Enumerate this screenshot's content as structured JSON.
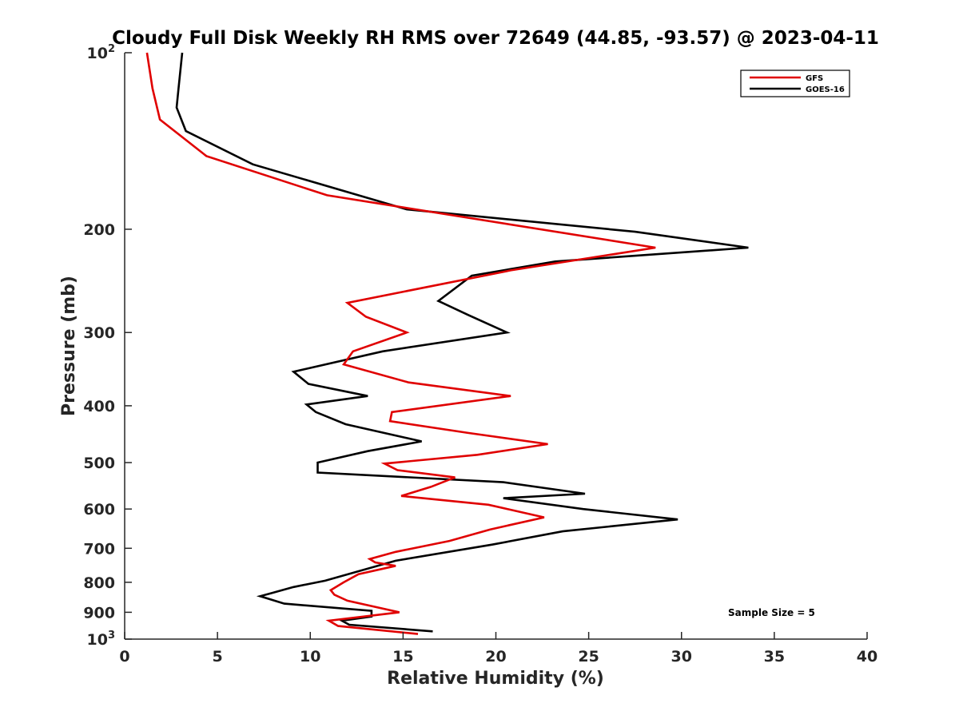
{
  "chart_data": {
    "type": "line",
    "title": "Cloudy Full Disk Weekly RH RMS over 72649 (44.85, -93.57) @ 2023-04-11",
    "xlabel": "Relative Humidity (%)",
    "ylabel": "Pressure (mb)",
    "xlim": [
      0,
      40
    ],
    "ylim": [
      100,
      1000
    ],
    "y_scale": "log",
    "y_reversed": true,
    "grid": false,
    "legend_position": "top-right",
    "x_ticks": [
      0,
      5,
      10,
      15,
      20,
      25,
      30,
      35,
      40
    ],
    "x_tick_labels": [
      "0",
      "5",
      "10",
      "15",
      "20",
      "25",
      "30",
      "35",
      "40"
    ],
    "y_ticks": [
      {
        "value": 100,
        "base": "10",
        "exp": "2"
      },
      {
        "value": 200,
        "label": "200"
      },
      {
        "value": 300,
        "label": "300"
      },
      {
        "value": 400,
        "label": "400"
      },
      {
        "value": 500,
        "label": "500"
      },
      {
        "value": 600,
        "label": "600"
      },
      {
        "value": 700,
        "label": "700"
      },
      {
        "value": 800,
        "label": "800"
      },
      {
        "value": 900,
        "label": "900"
      },
      {
        "value": 1000,
        "base": "10",
        "exp": "3"
      }
    ],
    "series": [
      {
        "name": "GFS",
        "color": "#e00000",
        "points": [
          [
            1.2,
            100
          ],
          [
            1.5,
            115
          ],
          [
            1.9,
            130
          ],
          [
            4.4,
            150
          ],
          [
            10.9,
            175
          ],
          [
            28.6,
            215
          ],
          [
            20.8,
            235
          ],
          [
            12.0,
            267
          ],
          [
            13.0,
            282
          ],
          [
            15.2,
            300
          ],
          [
            12.3,
            323
          ],
          [
            11.8,
            340
          ],
          [
            15.3,
            365
          ],
          [
            20.8,
            385
          ],
          [
            14.4,
            410
          ],
          [
            14.3,
            425
          ],
          [
            18.5,
            445
          ],
          [
            22.8,
            465
          ],
          [
            19.0,
            485
          ],
          [
            14.0,
            502
          ],
          [
            14.7,
            515
          ],
          [
            17.8,
            530
          ],
          [
            16.5,
            550
          ],
          [
            14.9,
            570
          ],
          [
            19.6,
            590
          ],
          [
            22.6,
            620
          ],
          [
            19.7,
            650
          ],
          [
            17.5,
            680
          ],
          [
            14.6,
            710
          ],
          [
            13.2,
            730
          ],
          [
            13.5,
            740
          ],
          [
            14.6,
            750
          ],
          [
            12.6,
            775
          ],
          [
            11.8,
            800
          ],
          [
            11.1,
            825
          ],
          [
            11.3,
            840
          ],
          [
            12.0,
            860
          ],
          [
            14.8,
            900
          ],
          [
            11.0,
            930
          ],
          [
            11.5,
            950
          ],
          [
            15.8,
            980
          ]
        ]
      },
      {
        "name": "GOES-16",
        "color": "#000000",
        "points": [
          [
            3.1,
            100
          ],
          [
            2.9,
            115
          ],
          [
            2.8,
            124
          ],
          [
            3.3,
            136
          ],
          [
            6.9,
            155
          ],
          [
            15.2,
            185
          ],
          [
            27.5,
            202
          ],
          [
            33.6,
            215
          ],
          [
            23.2,
            227
          ],
          [
            18.7,
            240
          ],
          [
            16.9,
            265
          ],
          [
            18.5,
            280
          ],
          [
            20.6,
            300
          ],
          [
            13.9,
            323
          ],
          [
            9.1,
            350
          ],
          [
            9.9,
            367
          ],
          [
            13.1,
            385
          ],
          [
            9.8,
            398
          ],
          [
            10.3,
            410
          ],
          [
            11.9,
            430
          ],
          [
            16.0,
            460
          ],
          [
            13.1,
            478
          ],
          [
            10.4,
            500
          ],
          [
            10.4,
            520
          ],
          [
            20.4,
            540
          ],
          [
            24.8,
            565
          ],
          [
            20.4,
            575
          ],
          [
            24.7,
            600
          ],
          [
            29.8,
            625
          ],
          [
            23.6,
            655
          ],
          [
            19.8,
            690
          ],
          [
            14.6,
            735
          ],
          [
            10.8,
            795
          ],
          [
            9.1,
            815
          ],
          [
            7.9,
            835
          ],
          [
            7.3,
            845
          ],
          [
            8.6,
            870
          ],
          [
            13.3,
            895
          ],
          [
            13.3,
            915
          ],
          [
            11.7,
            930
          ],
          [
            12.1,
            945
          ],
          [
            16.6,
            970
          ]
        ]
      }
    ],
    "legend": [
      {
        "label": "GFS",
        "color": "#e00000"
      },
      {
        "label": "GOES-16",
        "color": "#000000"
      }
    ],
    "annotation": "Sample Size = 5"
  }
}
